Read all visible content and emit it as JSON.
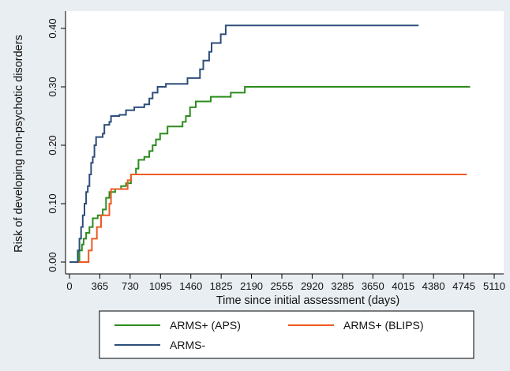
{
  "chart_data": {
    "type": "line",
    "step": true,
    "xlabel": "Time since initial assessment (days)",
    "ylabel": "Risk of developing non-psychotic disorders",
    "xlim": [
      0,
      5110
    ],
    "ylim": [
      0,
      0.42
    ],
    "xticks": [
      "0",
      "365",
      "730",
      "1095",
      "1460",
      "1825",
      "2190",
      "2555",
      "2920",
      "3285",
      "3650",
      "4015",
      "4380",
      "4745",
      "5110"
    ],
    "yticks": [
      "0.00",
      "0.10",
      "0.20",
      "0.30",
      "0.40"
    ],
    "grid": false,
    "legend_position": "bottom",
    "series": [
      {
        "name": "ARMS+ (APS)",
        "color": "#2d8c1e",
        "points": [
          [
            0,
            0
          ],
          [
            100,
            0
          ],
          [
            120,
            0.02
          ],
          [
            150,
            0.03
          ],
          [
            170,
            0.04
          ],
          [
            200,
            0.05
          ],
          [
            240,
            0.06
          ],
          [
            280,
            0.075
          ],
          [
            340,
            0.08
          ],
          [
            400,
            0.09
          ],
          [
            440,
            0.11
          ],
          [
            480,
            0.12
          ],
          [
            550,
            0.125
          ],
          [
            620,
            0.13
          ],
          [
            680,
            0.135
          ],
          [
            740,
            0.15
          ],
          [
            800,
            0.16
          ],
          [
            830,
            0.175
          ],
          [
            900,
            0.18
          ],
          [
            960,
            0.19
          ],
          [
            1000,
            0.2
          ],
          [
            1040,
            0.21
          ],
          [
            1090,
            0.22
          ],
          [
            1180,
            0.232
          ],
          [
            1360,
            0.24
          ],
          [
            1400,
            0.25
          ],
          [
            1450,
            0.265
          ],
          [
            1520,
            0.275
          ],
          [
            1700,
            0.283
          ],
          [
            1940,
            0.29
          ],
          [
            2110,
            0.3
          ],
          [
            4820,
            0.3
          ]
        ]
      },
      {
        "name": "ARMS+ (BLIPS)",
        "color": "#ee5a24",
        "points": [
          [
            0,
            0
          ],
          [
            200,
            0
          ],
          [
            230,
            0.02
          ],
          [
            270,
            0.04
          ],
          [
            330,
            0.06
          ],
          [
            380,
            0.08
          ],
          [
            480,
            0.1
          ],
          [
            500,
            0.125
          ],
          [
            570,
            0.125
          ],
          [
            640,
            0.125
          ],
          [
            700,
            0.14
          ],
          [
            740,
            0.15
          ],
          [
            4780,
            0.15
          ]
        ]
      },
      {
        "name": "ARMS-",
        "color": "#2e4d7b",
        "points": [
          [
            0,
            0
          ],
          [
            80,
            0
          ],
          [
            100,
            0.02
          ],
          [
            120,
            0.04
          ],
          [
            140,
            0.06
          ],
          [
            160,
            0.08
          ],
          [
            180,
            0.1
          ],
          [
            200,
            0.12
          ],
          [
            220,
            0.13
          ],
          [
            240,
            0.15
          ],
          [
            260,
            0.17
          ],
          [
            280,
            0.18
          ],
          [
            300,
            0.2
          ],
          [
            320,
            0.214
          ],
          [
            400,
            0.22
          ],
          [
            420,
            0.235
          ],
          [
            480,
            0.24
          ],
          [
            500,
            0.25
          ],
          [
            600,
            0.252
          ],
          [
            680,
            0.26
          ],
          [
            780,
            0.265
          ],
          [
            900,
            0.27
          ],
          [
            960,
            0.28
          ],
          [
            1000,
            0.29
          ],
          [
            1060,
            0.3
          ],
          [
            1160,
            0.305
          ],
          [
            1420,
            0.315
          ],
          [
            1570,
            0.33
          ],
          [
            1610,
            0.345
          ],
          [
            1680,
            0.36
          ],
          [
            1710,
            0.375
          ],
          [
            1820,
            0.39
          ],
          [
            1880,
            0.405
          ],
          [
            4200,
            0.405
          ]
        ]
      }
    ]
  }
}
